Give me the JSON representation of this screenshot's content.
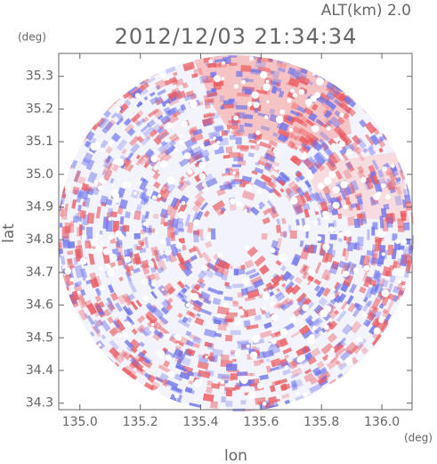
{
  "chart_data": {
    "type": "radar-ppi",
    "title": "2012/12/03 21:34:34",
    "subtitle": "ALT(km) 2.0",
    "x_label": "lon",
    "y_label": "lat",
    "x_unit": "(deg)",
    "y_unit": "(deg)",
    "xlim": [
      134.93,
      136.1
    ],
    "ylim": [
      34.28,
      35.37
    ],
    "xticks": [
      {
        "value": 135,
        "label": "135.0"
      },
      135.2,
      135.4,
      135.6,
      135.8,
      {
        "value": 136,
        "label": "136.0"
      }
    ],
    "yticks": [
      34.3,
      34.4,
      34.5,
      34.6,
      34.7,
      34.8,
      34.9,
      {
        "value": 35,
        "label": "35.0"
      },
      35.1,
      35.2,
      35.3
    ]
  }
}
